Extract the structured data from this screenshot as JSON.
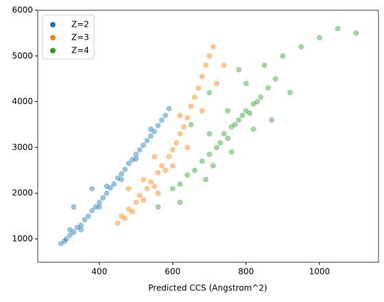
{
  "chart_data": {
    "type": "scatter",
    "xlabel": "Predicted CCS (Angstrom^2)",
    "xlim": [
      232,
      1161
    ],
    "xticks": [
      400,
      600,
      800,
      1000
    ],
    "ylim": [
      490,
      6000
    ],
    "yticks": [
      1000,
      2000,
      3000,
      4000,
      5000,
      6000
    ],
    "legend": "upper left",
    "series": [
      {
        "name": "Z=2",
        "color": "#1f77b4",
        "x": [
          295,
          305,
          310,
          320,
          330,
          340,
          350,
          360,
          370,
          380,
          390,
          400,
          410,
          420,
          430,
          440,
          450,
          460,
          470,
          480,
          490,
          500,
          510,
          520,
          530,
          540,
          550,
          560,
          570,
          580,
          590,
          320,
          350,
          400,
          420,
          460,
          500,
          540,
          330,
          380
        ],
        "values": [
          900,
          950,
          1000,
          1080,
          1150,
          1250,
          1300,
          1420,
          1500,
          1620,
          1700,
          1800,
          1900,
          2000,
          2120,
          2200,
          2330,
          2420,
          2520,
          2650,
          2730,
          2850,
          2950,
          3050,
          3150,
          3250,
          3350,
          3480,
          3600,
          3700,
          3850,
          1200,
          1200,
          1700,
          2150,
          2300,
          2750,
          3400,
          1700,
          2100
        ]
      },
      {
        "name": "Z=3",
        "color": "#ff7f0e",
        "x": [
          450,
          460,
          470,
          480,
          490,
          500,
          510,
          520,
          530,
          540,
          550,
          560,
          570,
          580,
          590,
          600,
          610,
          620,
          630,
          640,
          650,
          660,
          670,
          680,
          690,
          700,
          710,
          520,
          560,
          600,
          640,
          680,
          720,
          740,
          480,
          550,
          620
        ],
        "values": [
          1350,
          1500,
          1450,
          1650,
          1600,
          1800,
          1950,
          1850,
          2100,
          2250,
          2150,
          2450,
          2600,
          2500,
          2800,
          2950,
          3100,
          3300,
          3450,
          3650,
          3900,
          4100,
          4300,
          4550,
          4800,
          5000,
          5200,
          2300,
          2000,
          2600,
          3000,
          3800,
          4400,
          4800,
          2100,
          2800,
          3700
        ]
      },
      {
        "name": "Z=4",
        "color": "#2ca02c",
        "x": [
          600,
          620,
          640,
          660,
          680,
          700,
          710,
          720,
          730,
          740,
          750,
          760,
          770,
          780,
          790,
          800,
          810,
          820,
          830,
          840,
          860,
          880,
          700,
          750,
          800,
          850,
          900,
          950,
          1000,
          1050,
          1100,
          920,
          650,
          700,
          780,
          560,
          620,
          690,
          760,
          820,
          870
        ],
        "values": [
          2100,
          2200,
          2400,
          2500,
          2700,
          2850,
          2600,
          3000,
          3100,
          3300,
          3200,
          3450,
          3500,
          3600,
          3700,
          3800,
          3750,
          3950,
          4000,
          4100,
          4300,
          4500,
          3300,
          3800,
          4400,
          4800,
          5000,
          5200,
          5400,
          5600,
          5500,
          4200,
          3500,
          4200,
          4700,
          1700,
          1800,
          2300,
          2900,
          3400,
          3600
        ]
      }
    ]
  }
}
